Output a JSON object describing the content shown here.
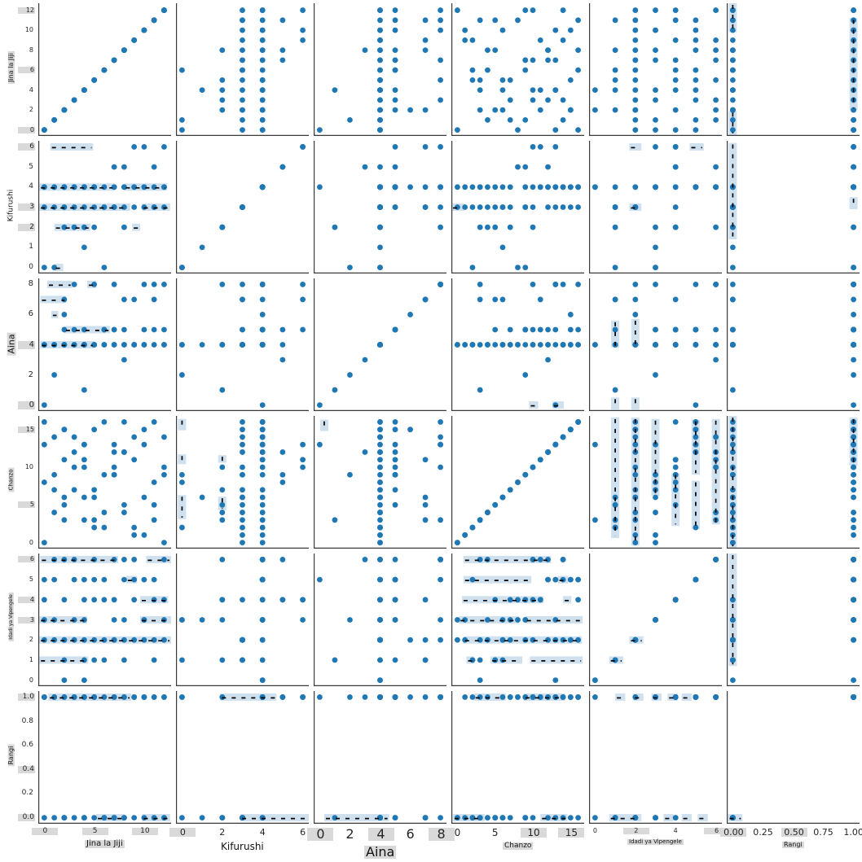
{
  "chart_data": {
    "type": "scatter_matrix",
    "title": "",
    "legend": null,
    "grid": false,
    "style": {
      "dot_color": "#1f77b4",
      "band_fill": "#cfe0ee",
      "band_dash_color": "#000000",
      "spine_color": "#3a3a3a",
      "tick_color": "#262626",
      "highlight_bg": "#d9d9d9",
      "background": "#ffffff"
    },
    "variables": [
      {
        "key": "jina",
        "label": "Jina la Jiji",
        "range": [
          -0.6,
          12.7
        ],
        "bottom_ticks": [
          {
            "v": 0,
            "t": "0",
            "hl": true
          },
          {
            "v": 5,
            "t": "5",
            "hl": true
          },
          {
            "v": 10,
            "t": "10",
            "hl": true
          }
        ],
        "left_ticks": [
          {
            "v": 0,
            "t": "0",
            "hl": true
          },
          {
            "v": 2,
            "t": "2"
          },
          {
            "v": 4,
            "t": "4"
          },
          {
            "v": 6,
            "t": "6",
            "hl": true
          },
          {
            "v": 8,
            "t": "8"
          },
          {
            "v": 10,
            "t": "10"
          },
          {
            "v": 12,
            "t": "12",
            "hl": true
          }
        ],
        "title_hl": true
      },
      {
        "key": "kifurushi",
        "label": "Kifurushi",
        "range": [
          -0.3,
          6.3
        ],
        "bottom_ticks": [
          {
            "v": 0,
            "t": "0",
            "hl": true
          },
          {
            "v": 2,
            "t": "2"
          },
          {
            "v": 4,
            "t": "4"
          },
          {
            "v": 6,
            "t": "6"
          }
        ],
        "left_ticks": [
          {
            "v": 0,
            "t": "0"
          },
          {
            "v": 1,
            "t": "1"
          },
          {
            "v": 2,
            "t": "2",
            "hl": true
          },
          {
            "v": 3,
            "t": "3",
            "hl": true
          },
          {
            "v": 4,
            "t": "4"
          },
          {
            "v": 5,
            "t": "5"
          },
          {
            "v": 6,
            "t": "6",
            "hl": true
          }
        ],
        "title_hl": false
      },
      {
        "key": "aina",
        "label": "Aina",
        "range": [
          -0.4,
          8.4
        ],
        "bottom_ticks": [
          {
            "v": 0,
            "t": "0",
            "hl": true
          },
          {
            "v": 2,
            "t": "2"
          },
          {
            "v": 4,
            "t": "4",
            "hl": true
          },
          {
            "v": 6,
            "t": "6"
          },
          {
            "v": 8,
            "t": "8",
            "hl": true
          }
        ],
        "left_ticks": [
          {
            "v": 0,
            "t": "0",
            "hl": true
          },
          {
            "v": 2,
            "t": "2"
          },
          {
            "v": 4,
            "t": "4",
            "hl": true
          },
          {
            "v": 6,
            "t": "6"
          },
          {
            "v": 8,
            "t": "8"
          }
        ],
        "title_hl": true
      },
      {
        "key": "chanzo",
        "label": "Chanzo",
        "range": [
          -0.8,
          16.8
        ],
        "bottom_ticks": [
          {
            "v": 0,
            "t": "0"
          },
          {
            "v": 5,
            "t": "5"
          },
          {
            "v": 10,
            "t": "10",
            "hl": true
          },
          {
            "v": 15,
            "t": "15",
            "hl": true
          }
        ],
        "left_ticks": [
          {
            "v": 0,
            "t": "0"
          },
          {
            "v": 5,
            "t": "5",
            "hl": true
          },
          {
            "v": 10,
            "t": "10"
          },
          {
            "v": 15,
            "t": "15",
            "hl": true
          }
        ],
        "title_hl": true
      },
      {
        "key": "idadi",
        "label": "Idadi ya Vipengele",
        "range": [
          -0.3,
          6.3
        ],
        "bottom_ticks": [
          {
            "v": 0,
            "t": "0"
          },
          {
            "v": 2,
            "t": "2",
            "hl": true
          },
          {
            "v": 4,
            "t": "4"
          },
          {
            "v": 6,
            "t": "6",
            "hl": true
          }
        ],
        "left_ticks": [
          {
            "v": 0,
            "t": "0"
          },
          {
            "v": 1,
            "t": "1"
          },
          {
            "v": 2,
            "t": "2"
          },
          {
            "v": 3,
            "t": "3",
            "hl": true
          },
          {
            "v": 4,
            "t": "4",
            "hl": true
          },
          {
            "v": 5,
            "t": "5"
          },
          {
            "v": 6,
            "t": "6",
            "hl": true
          }
        ],
        "title_hl": true
      },
      {
        "key": "rangi",
        "label": "Rangi",
        "range": [
          -0.05,
          1.05
        ],
        "bottom_ticks": [
          {
            "v": 0,
            "t": "0.00",
            "hl": true
          },
          {
            "v": 0.25,
            "t": "0.25"
          },
          {
            "v": 0.5,
            "t": "0.50",
            "hl": true
          },
          {
            "v": 0.75,
            "t": "0.75"
          },
          {
            "v": 1,
            "t": "1.00"
          }
        ],
        "left_ticks": [
          {
            "v": 0,
            "t": "0.0",
            "hl": true
          },
          {
            "v": 0.2,
            "t": "0.2"
          },
          {
            "v": 0.4,
            "t": "0.4",
            "hl": true
          },
          {
            "v": 0.6,
            "t": "0.6"
          },
          {
            "v": 0.8,
            "t": "0.8"
          },
          {
            "v": 1,
            "t": "1.0",
            "hl": true
          }
        ],
        "title_hl": true
      }
    ],
    "rows": [
      [
        0,
        3,
        4,
        0,
        2,
        0
      ],
      [
        0,
        4,
        0,
        13,
        5,
        1
      ],
      [
        0,
        0,
        4,
        8,
        3,
        1
      ],
      [
        1,
        3,
        4,
        7,
        2,
        0
      ],
      [
        1,
        4,
        4,
        14,
        5,
        1
      ],
      [
        1,
        0,
        2,
        9,
        3,
        1
      ],
      [
        2,
        3,
        4,
        15,
        2,
        0
      ],
      [
        2,
        4,
        5,
        11,
        6,
        1
      ],
      [
        2,
        2,
        4,
        5,
        4,
        0
      ],
      [
        3,
        3,
        4,
        14,
        2,
        0
      ],
      [
        3,
        4,
        4,
        12,
        5,
        1
      ],
      [
        3,
        2,
        8,
        10,
        6,
        1
      ],
      [
        4,
        3,
        4,
        10,
        2,
        0
      ],
      [
        4,
        4,
        5,
        13,
        5,
        1
      ],
      [
        4,
        1,
        4,
        6,
        3,
        0
      ],
      [
        5,
        3,
        4,
        2,
        1,
        0
      ],
      [
        5,
        4,
        4,
        15,
        5,
        1
      ],
      [
        5,
        2,
        4,
        7,
        4,
        1
      ],
      [
        6,
        3,
        4,
        4,
        2,
        0
      ],
      [
        6,
        4,
        5,
        16,
        5,
        1
      ],
      [
        6,
        0,
        4,
        2,
        1,
        0
      ],
      [
        7,
        3,
        4,
        12,
        2,
        0
      ],
      [
        7,
        4,
        4,
        10,
        6,
        1
      ],
      [
        7,
        5,
        5,
        9,
        4,
        1
      ],
      [
        8,
        3,
        4,
        16,
        2,
        0
      ],
      [
        8,
        4,
        5,
        12,
        5,
        1
      ],
      [
        8,
        2,
        4,
        4,
        3,
        0
      ],
      [
        9,
        3,
        4,
        1,
        2,
        0
      ],
      [
        9,
        4,
        4,
        14,
        6,
        1
      ],
      [
        9,
        6,
        7,
        11,
        4,
        1
      ],
      [
        10,
        3,
        4,
        6,
        2,
        0
      ],
      [
        10,
        4,
        5,
        15,
        5,
        1
      ],
      [
        10,
        6,
        8,
        13,
        3,
        1
      ],
      [
        11,
        3,
        7,
        3,
        2,
        0
      ],
      [
        11,
        4,
        8,
        16,
        5,
        1
      ],
      [
        11,
        5,
        4,
        8,
        4,
        1
      ],
      [
        12,
        3,
        4,
        9,
        2,
        0
      ],
      [
        12,
        4,
        8,
        14,
        6,
        1
      ],
      [
        12,
        6,
        5,
        10,
        4,
        1
      ],
      [
        2,
        3,
        7,
        6,
        1,
        0
      ],
      [
        5,
        4,
        8,
        3,
        6,
        1
      ],
      [
        8,
        4,
        7,
        5,
        1,
        0
      ],
      [
        3,
        4,
        5,
        7,
        3,
        1
      ],
      [
        6,
        3,
        5,
        9,
        4,
        0
      ],
      [
        9,
        4,
        4,
        2,
        5,
        1
      ],
      [
        4,
        4,
        4,
        11,
        4,
        1
      ],
      [
        7,
        3,
        8,
        13,
        2,
        0
      ],
      [
        10,
        4,
        4,
        1,
        3,
        1
      ],
      [
        1,
        4,
        4,
        4,
        6,
        1
      ],
      [
        11,
        3,
        5,
        5,
        1,
        0
      ],
      [
        0,
        4,
        4,
        16,
        4,
        1
      ],
      [
        12,
        4,
        4,
        0,
        3,
        0
      ],
      [
        4,
        2,
        1,
        3,
        1,
        0
      ],
      [
        8,
        5,
        3,
        12,
        6,
        1
      ],
      [
        2,
        4,
        6,
        15,
        2,
        1
      ],
      [
        2,
        4,
        4,
        3,
        0,
        0
      ],
      [
        4,
        4,
        4,
        13,
        0,
        1
      ],
      [
        5,
        4,
        4,
        6,
        2,
        1
      ],
      [
        7,
        4,
        5,
        9,
        3,
        0
      ]
    ],
    "bands": [
      [
        1,
        6,
        "v",
        0,
        9.8,
        12.7
      ],
      [
        1,
        6,
        "v",
        0,
        -0.5,
        1.9
      ],
      [
        1,
        6,
        "v",
        1,
        2.0,
        11.2
      ],
      [
        2,
        1,
        "h",
        6,
        0.6,
        4.9
      ],
      [
        2,
        1,
        "h",
        4,
        -0.5,
        7.0
      ],
      [
        2,
        1,
        "h",
        4,
        8.0,
        12.3
      ],
      [
        2,
        1,
        "h",
        3,
        -0.5,
        8.6
      ],
      [
        2,
        1,
        "h",
        3,
        9.8,
        12.6
      ],
      [
        2,
        1,
        "h",
        2,
        1.0,
        4.6
      ],
      [
        2,
        1,
        "h",
        2,
        8.8,
        9.6
      ],
      [
        2,
        1,
        "h",
        0,
        1.0,
        1.9
      ],
      [
        2,
        4,
        "h",
        3,
        -0.8,
        0.9
      ],
      [
        2,
        5,
        "h",
        6,
        1.7,
        2.3
      ],
      [
        2,
        5,
        "h",
        6,
        4.7,
        5.4
      ],
      [
        2,
        5,
        "h",
        3,
        1.7,
        2.3
      ],
      [
        2,
        6,
        "v",
        0,
        1.4,
        6.2
      ],
      [
        2,
        6,
        "v",
        1,
        2.9,
        3.5
      ],
      [
        3,
        1,
        "h",
        8,
        0.3,
        2.8
      ],
      [
        3,
        1,
        "h",
        8,
        4.3,
        5.2
      ],
      [
        3,
        1,
        "h",
        7,
        -0.4,
        2.2
      ],
      [
        3,
        1,
        "h",
        6,
        0.7,
        1.4
      ],
      [
        3,
        1,
        "h",
        5,
        2.0,
        6.6
      ],
      [
        3,
        1,
        "h",
        4,
        -0.4,
        5.0
      ],
      [
        3,
        4,
        "h",
        0,
        9.5,
        10.7
      ],
      [
        3,
        4,
        "h",
        0,
        12.6,
        14.1
      ],
      [
        3,
        5,
        "v",
        1,
        3.8,
        5.6
      ],
      [
        3,
        5,
        "v",
        2,
        3.9,
        5.7
      ],
      [
        3,
        5,
        "v",
        1,
        -0.3,
        0.5
      ],
      [
        3,
        5,
        "v",
        2,
        -0.3,
        0.5
      ],
      [
        4,
        2,
        "v",
        0,
        14.9,
        16.4
      ],
      [
        4,
        2,
        "v",
        0,
        10.4,
        11.7
      ],
      [
        4,
        2,
        "v",
        2,
        10.6,
        11.6
      ],
      [
        4,
        2,
        "v",
        0,
        3.1,
        6.3
      ],
      [
        4,
        2,
        "v",
        2,
        4.3,
        6.1
      ],
      [
        4,
        3,
        "v",
        0.3,
        14.8,
        16.3
      ],
      [
        4,
        5,
        "v",
        1,
        0.6,
        16.6
      ],
      [
        4,
        5,
        "v",
        2,
        -0.4,
        16.6
      ],
      [
        4,
        5,
        "v",
        3,
        6.2,
        16.4
      ],
      [
        4,
        5,
        "v",
        4,
        2.2,
        9.2
      ],
      [
        4,
        5,
        "v",
        5,
        9.0,
        16.3
      ],
      [
        4,
        5,
        "v",
        5,
        1.8,
        8.2
      ],
      [
        4,
        5,
        "v",
        6,
        2.4,
        16.4
      ],
      [
        4,
        6,
        "v",
        0,
        -0.7,
        16.8
      ],
      [
        4,
        6,
        "v",
        1,
        10.2,
        16.6
      ],
      [
        5,
        1,
        "h",
        6,
        -0.4,
        7.4
      ],
      [
        5,
        1,
        "h",
        6,
        10.2,
        12.7
      ],
      [
        5,
        1,
        "h",
        5,
        8.2,
        9.3
      ],
      [
        5,
        1,
        "h",
        4,
        9.6,
        12.4
      ],
      [
        5,
        1,
        "h",
        3,
        -0.5,
        4.3
      ],
      [
        5,
        1,
        "h",
        3,
        9.6,
        12.7
      ],
      [
        5,
        1,
        "h",
        2,
        -0.5,
        12.7
      ],
      [
        5,
        1,
        "h",
        1,
        -0.5,
        4.4
      ],
      [
        5,
        4,
        "h",
        6,
        0.8,
        12.4
      ],
      [
        5,
        4,
        "h",
        5,
        0.8,
        9.8
      ],
      [
        5,
        4,
        "h",
        5,
        13.3,
        14.7
      ],
      [
        5,
        4,
        "h",
        4,
        0.6,
        11.4
      ],
      [
        5,
        4,
        "h",
        4,
        14.0,
        15.1
      ],
      [
        5,
        4,
        "h",
        3,
        0.2,
        8.2
      ],
      [
        5,
        4,
        "h",
        3,
        9.0,
        16.6
      ],
      [
        5,
        4,
        "h",
        2,
        0.8,
        16.5
      ],
      [
        5,
        4,
        "h",
        1,
        1.2,
        2.2
      ],
      [
        5,
        4,
        "h",
        1,
        4.4,
        8.6
      ],
      [
        5,
        4,
        "h",
        1,
        9.6,
        16.6
      ],
      [
        5,
        5,
        "h",
        1,
        0.7,
        1.4
      ],
      [
        5,
        5,
        "h",
        2,
        1.7,
        2.4
      ],
      [
        5,
        6,
        "v",
        0,
        0.7,
        6.3
      ],
      [
        6,
        1,
        "h",
        1,
        0.4,
        8.7
      ],
      [
        6,
        1,
        "h",
        0,
        5.2,
        8.0
      ],
      [
        6,
        1,
        "h",
        0,
        9.8,
        12.6
      ],
      [
        6,
        2,
        "h",
        1,
        1.9,
        4.7
      ],
      [
        6,
        2,
        "h",
        0,
        2.9,
        6.5
      ],
      [
        6,
        3,
        "h",
        0,
        0.3,
        4.6
      ],
      [
        6,
        4,
        "h",
        1,
        2.2,
        6.4
      ],
      [
        6,
        4,
        "h",
        1,
        8.8,
        14.2
      ],
      [
        6,
        4,
        "h",
        0,
        -0.6,
        3.6
      ],
      [
        6,
        4,
        "h",
        0,
        11.0,
        14.6
      ],
      [
        6,
        5,
        "h",
        1,
        1.0,
        1.5
      ],
      [
        6,
        5,
        "h",
        1,
        1.9,
        2.4
      ],
      [
        6,
        5,
        "h",
        1,
        2.8,
        3.3
      ],
      [
        6,
        5,
        "h",
        1,
        3.6,
        4.1
      ],
      [
        6,
        5,
        "h",
        1,
        4.3,
        4.8
      ],
      [
        6,
        5,
        "h",
        0,
        0.7,
        2.3
      ],
      [
        6,
        5,
        "h",
        0,
        3.4,
        3.9
      ],
      [
        6,
        5,
        "h",
        0,
        4.3,
        4.8
      ],
      [
        6,
        5,
        "h",
        0,
        5.1,
        5.6
      ],
      [
        6,
        6,
        "h",
        0,
        -0.04,
        0.08
      ]
    ]
  }
}
